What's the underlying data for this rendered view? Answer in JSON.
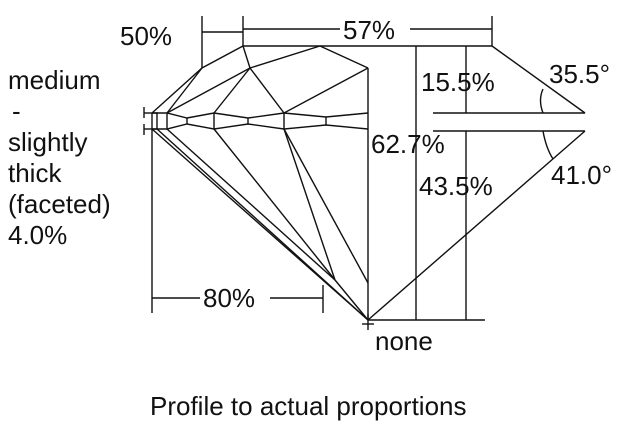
{
  "diagram": {
    "caption": "Profile to actual proportions",
    "girdle_label": [
      "medium",
      "-",
      "slightly",
      "thick",
      "(faceted)",
      "4.0%"
    ],
    "lower_half_length": "50%",
    "table": "57%",
    "crown_height": "15.5%",
    "crown_angle": "35.5°",
    "total_depth": "62.7%",
    "pavilion_depth": "43.5%",
    "pavilion_angle": "41.0°",
    "star_length": "80%",
    "culet": "none"
  }
}
